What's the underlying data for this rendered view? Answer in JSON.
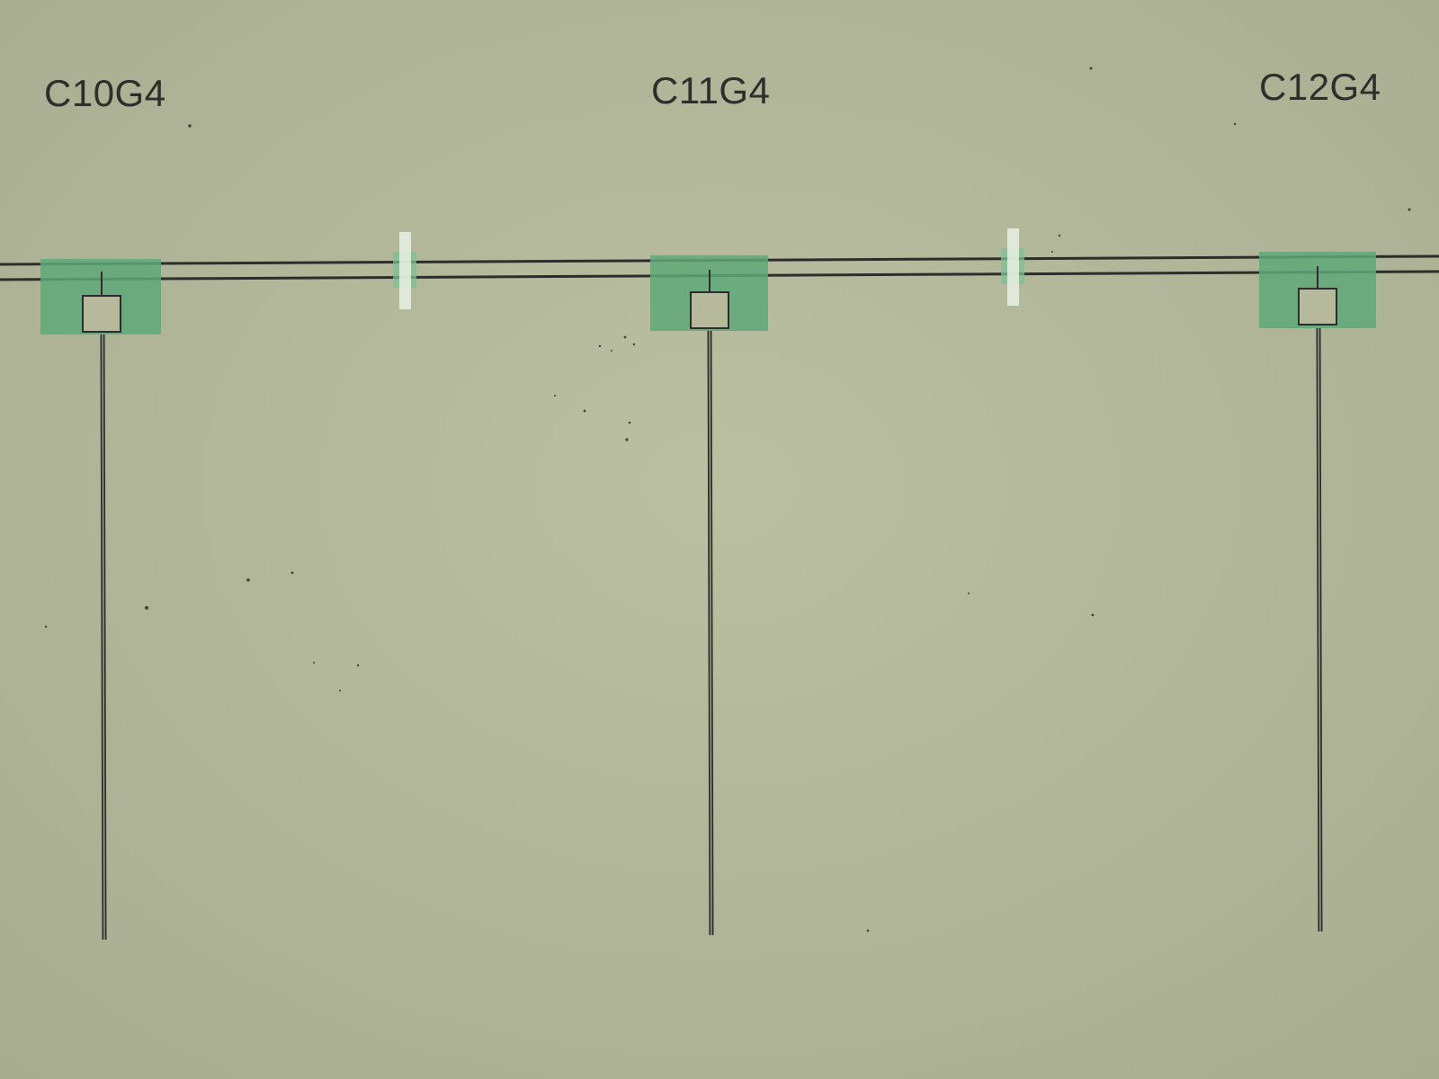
{
  "image": {
    "device_labels": [
      "C10G4",
      "C11G4",
      "C12G4"
    ]
  },
  "colors": {
    "substrate": "#b6b99c",
    "pad_fill": "#5fa878",
    "waveguide": "#2b2e2a",
    "marker": "#e9f1e4",
    "label_text": "#2d2f2b"
  }
}
